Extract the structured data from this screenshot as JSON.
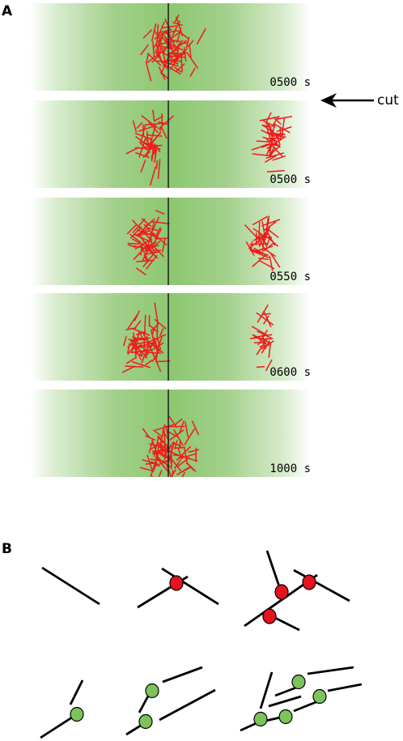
{
  "panel_a": {
    "letter": "A",
    "strips": [
      {
        "time": "0500 s",
        "clusters": [
          [
            0.5,
            0.5,
            0.2,
            80,
            1.0
          ]
        ]
      },
      {
        "time": "0500 s",
        "clusters": [
          [
            0.43,
            0.5,
            0.12,
            45,
            1.0
          ],
          [
            0.87,
            0.45,
            0.1,
            45,
            1.0
          ]
        ]
      },
      {
        "time": "0550 s",
        "clusters": [
          [
            0.42,
            0.5,
            0.14,
            55,
            1.0
          ],
          [
            0.83,
            0.5,
            0.11,
            40,
            1.0
          ]
        ]
      },
      {
        "time": "0600 s",
        "clusters": [
          [
            0.4,
            0.55,
            0.17,
            65,
            1.0
          ],
          [
            0.83,
            0.48,
            0.08,
            22,
            1.0
          ]
        ]
      },
      {
        "time": "1000 s",
        "clusters": [
          [
            0.5,
            0.7,
            0.22,
            80,
            1.0
          ]
        ]
      }
    ],
    "cut_label": "cut"
  },
  "panel_b": {
    "letter": "B"
  },
  "colors": {
    "filament": "#ee1c1c",
    "green_dot": "#7cc35a",
    "red_dot": "#e4131d"
  }
}
